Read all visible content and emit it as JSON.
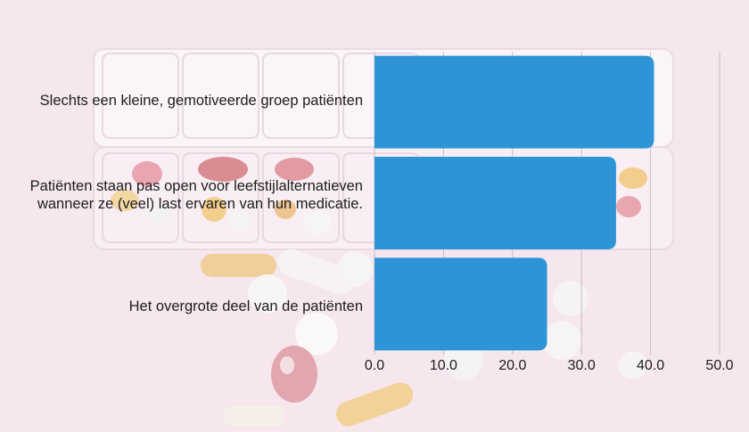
{
  "chart_data": {
    "type": "bar",
    "orientation": "horizontal",
    "categories": [
      "Slechts een kleine, gemotiveerde groep patiënten",
      "Patiënten staan pas open voor leefstijlalternatieven\nwanneer ze (veel) last ervaren van hun medicatie.",
      "Het overgrote deel van de patiënten"
    ],
    "values": [
      40.5,
      35.0,
      25.0
    ],
    "xlim": [
      0,
      50
    ],
    "tick_labels": [
      "0.0",
      "10.0",
      "20.0",
      "30.0",
      "40.0",
      "50.0"
    ],
    "grid": true,
    "bar_color": "#2d95d6",
    "title": "",
    "xlabel": "",
    "ylabel": ""
  },
  "background": {
    "description_icon": "pill-organizer-photo",
    "tint": "#f6e6ee"
  }
}
